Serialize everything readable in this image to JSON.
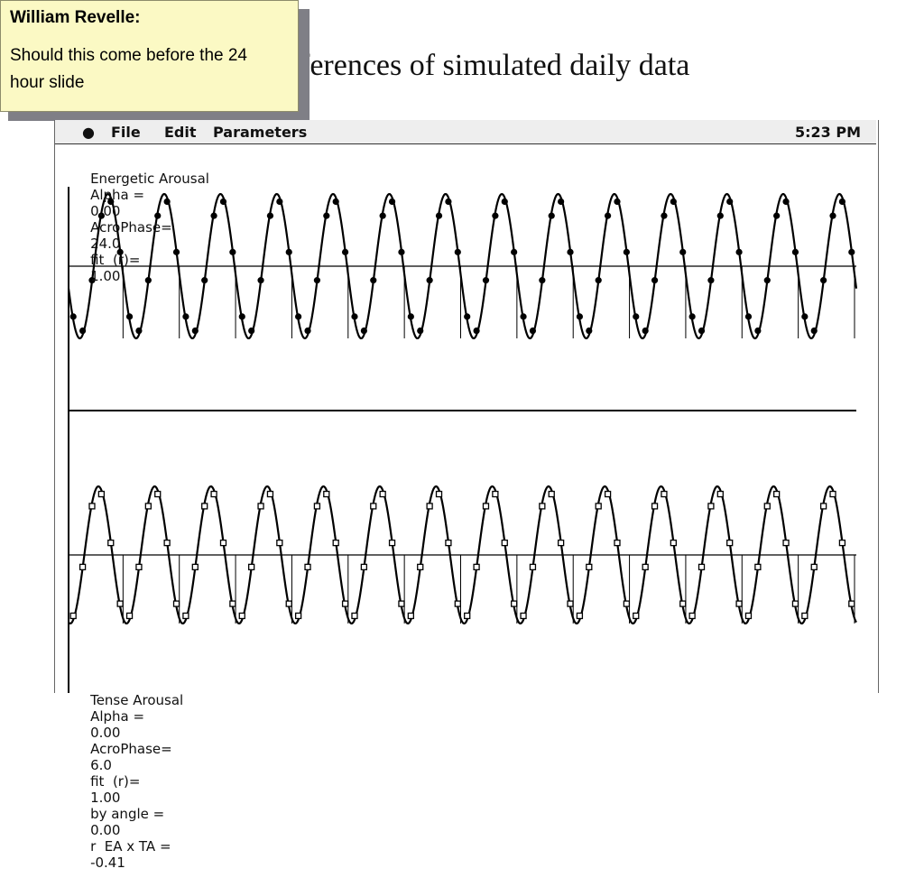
{
  "slide": {
    "title": "ferences of simulated daily data"
  },
  "sticky_note": {
    "author": "William Revelle:",
    "text": "Should this come before the 24 hour slide"
  },
  "menubar": {
    "apple_icon": "apple-icon",
    "items": [
      "File",
      "Edit",
      "Parameters"
    ],
    "clock": "5:23 PM"
  },
  "panels": {
    "energetic": {
      "label": "Energetic Arousal",
      "alpha_text": "Alpha =",
      "alpha_value": "0.00",
      "acro_text": "AcroPhase=",
      "acro_value": "24.0",
      "fit_text": "fit  (r)=",
      "fit_value": "1.00"
    },
    "tense": {
      "label": "Tense Arousal",
      "alpha_text": "Alpha =",
      "alpha_value": "0.00",
      "acro_text": "AcroPhase=",
      "acro_value": "6.0",
      "fit_text": "fit  (r)=",
      "fit_value": "1.00",
      "angle_text": "by angle =",
      "angle_value": "0.00",
      "corr_text": "r  EA x TA =",
      "corr_value": "-0.41"
    }
  },
  "chart_data": [
    {
      "type": "line",
      "series": [
        {
          "values": [
            0.9,
            0.7,
            0.4,
            0.0,
            -0.4,
            -0.8,
            -1.0,
            -0.8,
            -0.4,
            0.1,
            0.5,
            0.9,
            1.0
          ]
        },
        {
          "marker": "filled-circle",
          "values": [
            0.85,
            0.75,
            0.45,
            0.05,
            -0.35,
            -0.75,
            -0.95,
            -0.85,
            -0.45,
            0.05,
            0.55,
            0.85,
            0.95
          ]
        }
      ],
      "cycles": 14,
      "marker_style": "filled-circle"
    },
    {
      "type": "line",
      "series": [
        {
          "values": [
            -0.1,
            0.5,
            0.9,
            1.0,
            0.7,
            0.2,
            -0.4,
            -0.9,
            -1.0,
            -0.8,
            -0.3,
            0.3
          ]
        },
        {
          "marker": "open-square",
          "values": [
            0.0,
            0.45,
            0.85,
            0.95,
            0.75,
            0.25,
            -0.35,
            -0.85,
            -0.95,
            -0.75,
            -0.25,
            0.35
          ]
        }
      ],
      "cycles": 14,
      "marker_style": "open-square"
    }
  ]
}
